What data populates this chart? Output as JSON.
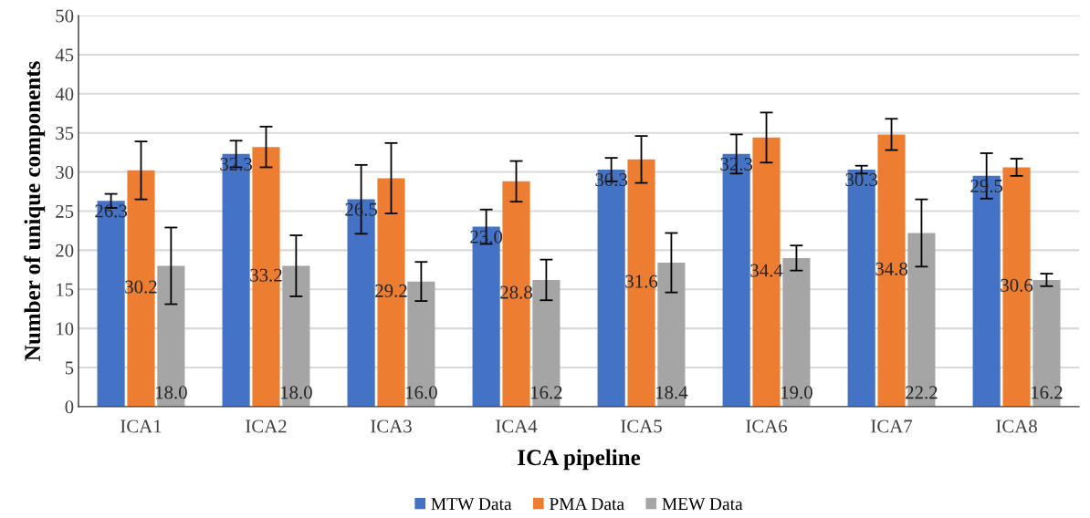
{
  "chart_data": {
    "type": "bar",
    "xlabel": "ICA pipeline",
    "ylabel": "Number of unique components",
    "categories": [
      "ICA1",
      "ICA2",
      "ICA3",
      "ICA4",
      "ICA5",
      "ICA6",
      "ICA7",
      "ICA8"
    ],
    "series": [
      {
        "name": "MTW Data",
        "color": "#4472c4",
        "values": [
          26.3,
          32.3,
          26.5,
          23.0,
          30.3,
          32.3,
          30.3,
          29.5
        ],
        "errors": [
          0.9,
          1.7,
          4.4,
          2.2,
          1.5,
          2.5,
          0.5,
          2.9
        ],
        "value_labels": [
          "26.3",
          "32.3",
          "26.5",
          "23.0",
          "30.3",
          "32.3",
          "30.3",
          "29.5"
        ]
      },
      {
        "name": "PMA Data",
        "color": "#ed7d31",
        "values": [
          30.2,
          33.2,
          29.2,
          28.8,
          31.6,
          34.4,
          34.8,
          30.6
        ],
        "errors": [
          3.7,
          2.6,
          4.5,
          2.6,
          3.0,
          3.2,
          2.0,
          1.1
        ],
        "value_labels": [
          "30.2",
          "33.2",
          "29.2",
          "28.8",
          "31.6",
          "34.4",
          "34.8",
          "30.6"
        ]
      },
      {
        "name": "MEW Data",
        "color": "#a5a5a5",
        "values": [
          18.0,
          18.0,
          16.0,
          16.2,
          18.4,
          19.0,
          22.2,
          16.2
        ],
        "errors": [
          4.9,
          3.9,
          2.5,
          2.6,
          3.8,
          1.6,
          4.3,
          0.8
        ],
        "value_labels": [
          "18.0",
          "18.0",
          "16.0",
          "16.2",
          "18.4",
          "19.0",
          "22.2",
          "16.2"
        ]
      }
    ],
    "ylim": [
      0,
      50
    ],
    "yticks": [
      0,
      5,
      10,
      15,
      20,
      25,
      30,
      35,
      40,
      45,
      50
    ],
    "grid": "y",
    "legend": "bottom"
  }
}
